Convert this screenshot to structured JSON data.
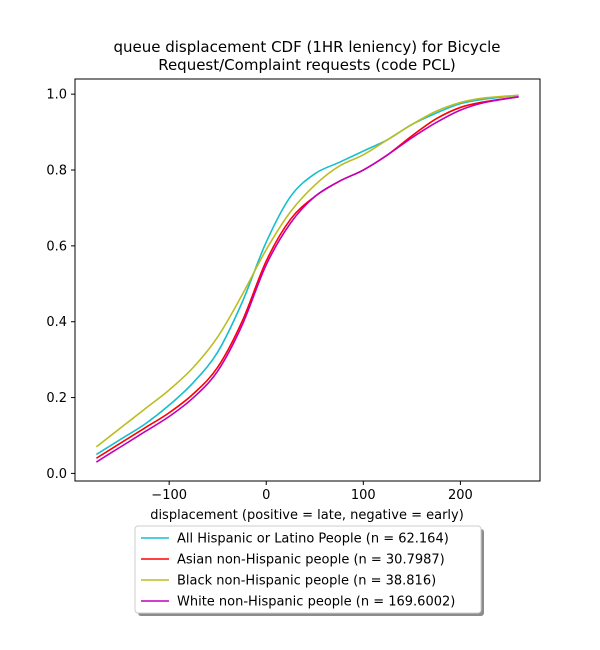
{
  "chart_data": {
    "type": "line",
    "title_line1": "queue displacement CDF (1HR leniency) for Bicycle",
    "title_line2": "Request/Complaint  requests (code PCL)",
    "xlabel": "displacement (positive = late, negative = early)",
    "ylabel": "",
    "xlim": [
      -197,
      282
    ],
    "ylim": [
      -0.02,
      1.04
    ],
    "x_ticks": [
      -100,
      0,
      100,
      200
    ],
    "x_tick_labels": [
      "−100",
      "0",
      "100",
      "200"
    ],
    "y_ticks": [
      0.0,
      0.2,
      0.4,
      0.6,
      0.8,
      1.0
    ],
    "y_tick_labels": [
      "0.0",
      "0.2",
      "0.4",
      "0.6",
      "0.8",
      "1.0"
    ],
    "grid": false,
    "legend_position": "below-plot",
    "series": [
      {
        "name": "All Hispanic or Latino People (n = 62.164)",
        "color": "#17becf",
        "x": [
          -175,
          -150,
          -125,
          -100,
          -75,
          -50,
          -25,
          0,
          25,
          50,
          75,
          100,
          125,
          150,
          175,
          200,
          225,
          260
        ],
        "y": [
          0.05,
          0.09,
          0.13,
          0.18,
          0.24,
          0.32,
          0.45,
          0.61,
          0.73,
          0.79,
          0.82,
          0.85,
          0.88,
          0.92,
          0.95,
          0.975,
          0.987,
          0.997
        ]
      },
      {
        "name": "Asian non-Hispanic people (n = 30.7987)",
        "color": "#ff0000",
        "x": [
          -175,
          -150,
          -125,
          -100,
          -75,
          -50,
          -25,
          0,
          25,
          50,
          75,
          100,
          125,
          150,
          175,
          200,
          225,
          260
        ],
        "y": [
          0.04,
          0.08,
          0.12,
          0.16,
          0.21,
          0.28,
          0.4,
          0.56,
          0.67,
          0.73,
          0.77,
          0.8,
          0.84,
          0.89,
          0.935,
          0.965,
          0.98,
          0.993
        ]
      },
      {
        "name": "Black non-Hispanic people (n = 38.816)",
        "color": "#bcbd22",
        "x": [
          -175,
          -150,
          -125,
          -100,
          -75,
          -50,
          -25,
          0,
          25,
          50,
          75,
          100,
          125,
          150,
          175,
          200,
          225,
          260
        ],
        "y": [
          0.07,
          0.12,
          0.17,
          0.22,
          0.28,
          0.36,
          0.47,
          0.59,
          0.69,
          0.76,
          0.81,
          0.84,
          0.88,
          0.92,
          0.955,
          0.978,
          0.99,
          0.997
        ]
      },
      {
        "name": "White non-Hispanic people (n = 169.6002)",
        "color": "#bf00bf",
        "x": [
          -175,
          -150,
          -125,
          -100,
          -75,
          -50,
          -25,
          0,
          25,
          50,
          75,
          100,
          125,
          150,
          175,
          200,
          225,
          260
        ],
        "y": [
          0.03,
          0.07,
          0.11,
          0.15,
          0.2,
          0.27,
          0.39,
          0.55,
          0.66,
          0.73,
          0.77,
          0.8,
          0.84,
          0.885,
          0.925,
          0.958,
          0.978,
          0.993
        ]
      }
    ]
  }
}
